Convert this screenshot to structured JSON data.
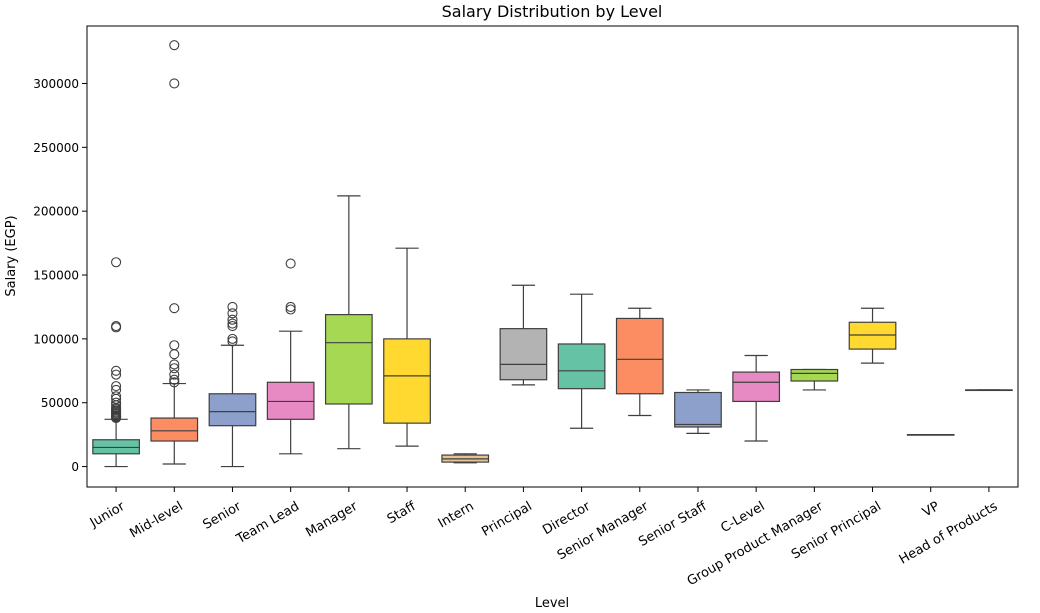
{
  "chart_data": {
    "type": "boxplot",
    "title": "Salary Distribution by Level",
    "xlabel": "Level",
    "ylabel": "Salary (EGP)",
    "ylim": [
      -16000,
      345000
    ],
    "yticks": [
      0,
      50000,
      100000,
      150000,
      200000,
      250000,
      300000
    ],
    "ytick_labels": [
      "0",
      "50000",
      "100000",
      "150000",
      "200000",
      "250000",
      "300000"
    ],
    "grid": false,
    "categories": [
      "Junior",
      "Mid-level",
      "Senior",
      "Team Lead",
      "Manager",
      "Staff",
      "Intern",
      "Principal",
      "Director",
      "Senior Manager",
      "Senior Staff",
      "C-Level",
      "Group Product Manager",
      "Senior Principal",
      "VP",
      "Head of Products"
    ],
    "boxes": [
      {
        "min": 0,
        "q1": 10000,
        "median": 15000,
        "q3": 21000,
        "max": 37000,
        "outliers": [
          160000,
          110000,
          109000,
          75000,
          72000,
          63000,
          60000,
          55000,
          53000,
          50000,
          48000,
          46000,
          45000,
          44000,
          43000,
          42000,
          41000,
          40000,
          39500,
          39000,
          38500,
          38000
        ]
      },
      {
        "min": 2000,
        "q1": 20000,
        "median": 28000,
        "q3": 38000,
        "max": 65000,
        "outliers": [
          330000,
          300000,
          124000,
          95000,
          88000,
          80000,
          77000,
          72000,
          68000,
          66000
        ]
      },
      {
        "min": 0,
        "q1": 32000,
        "median": 43000,
        "q3": 57000,
        "max": 95000,
        "outliers": [
          125000,
          120000,
          115000,
          112000,
          110000,
          100000,
          98000
        ]
      },
      {
        "min": 10000,
        "q1": 37000,
        "median": 51000,
        "q3": 66000,
        "max": 106000,
        "outliers": [
          159000,
          125000,
          123000
        ]
      },
      {
        "min": 14000,
        "q1": 49000,
        "median": 97000,
        "q3": 119000,
        "max": 212000,
        "outliers": []
      },
      {
        "min": 16000,
        "q1": 34000,
        "median": 71000,
        "q3": 100000,
        "max": 171000,
        "outliers": []
      },
      {
        "min": 3000,
        "q1": 3500,
        "median": 6000,
        "q3": 9000,
        "max": 10000,
        "outliers": []
      },
      {
        "min": 64000,
        "q1": 68000,
        "median": 80000,
        "q3": 108000,
        "max": 142000,
        "outliers": []
      },
      {
        "min": 30000,
        "q1": 61000,
        "median": 75000,
        "q3": 96000,
        "max": 135000,
        "outliers": []
      },
      {
        "min": 40000,
        "q1": 57000,
        "median": 84000,
        "q3": 116000,
        "max": 124000,
        "outliers": []
      },
      {
        "min": 26000,
        "q1": 31000,
        "median": 33000,
        "q3": 58000,
        "max": 60000,
        "outliers": []
      },
      {
        "min": 20000,
        "q1": 51000,
        "median": 66000,
        "q3": 74000,
        "max": 87000,
        "outliers": []
      },
      {
        "min": 60000,
        "q1": 67000,
        "median": 73000,
        "q3": 76000,
        "max": 76000,
        "outliers": []
      },
      {
        "min": 81000,
        "q1": 92000,
        "median": 103000,
        "q3": 113000,
        "max": 124000,
        "outliers": []
      },
      {
        "min": 25000,
        "q1": 25000,
        "median": 25000,
        "q3": 25000,
        "max": 25000,
        "outliers": []
      },
      {
        "min": 60000,
        "q1": 60000,
        "median": 60000,
        "q3": 60000,
        "max": 60000,
        "outliers": []
      }
    ],
    "colors": [
      "#66c2a5",
      "#fc8d62",
      "#8da0cb",
      "#e78ac3",
      "#a6d854",
      "#ffd92f",
      "#e5c494",
      "#b3b3b3",
      "#66c2a5",
      "#fc8d62",
      "#8da0cb",
      "#e78ac3",
      "#a6d854",
      "#ffd92f",
      "#e5c494",
      "#b3b3b3"
    ],
    "line_color": "#3f3f3f"
  }
}
